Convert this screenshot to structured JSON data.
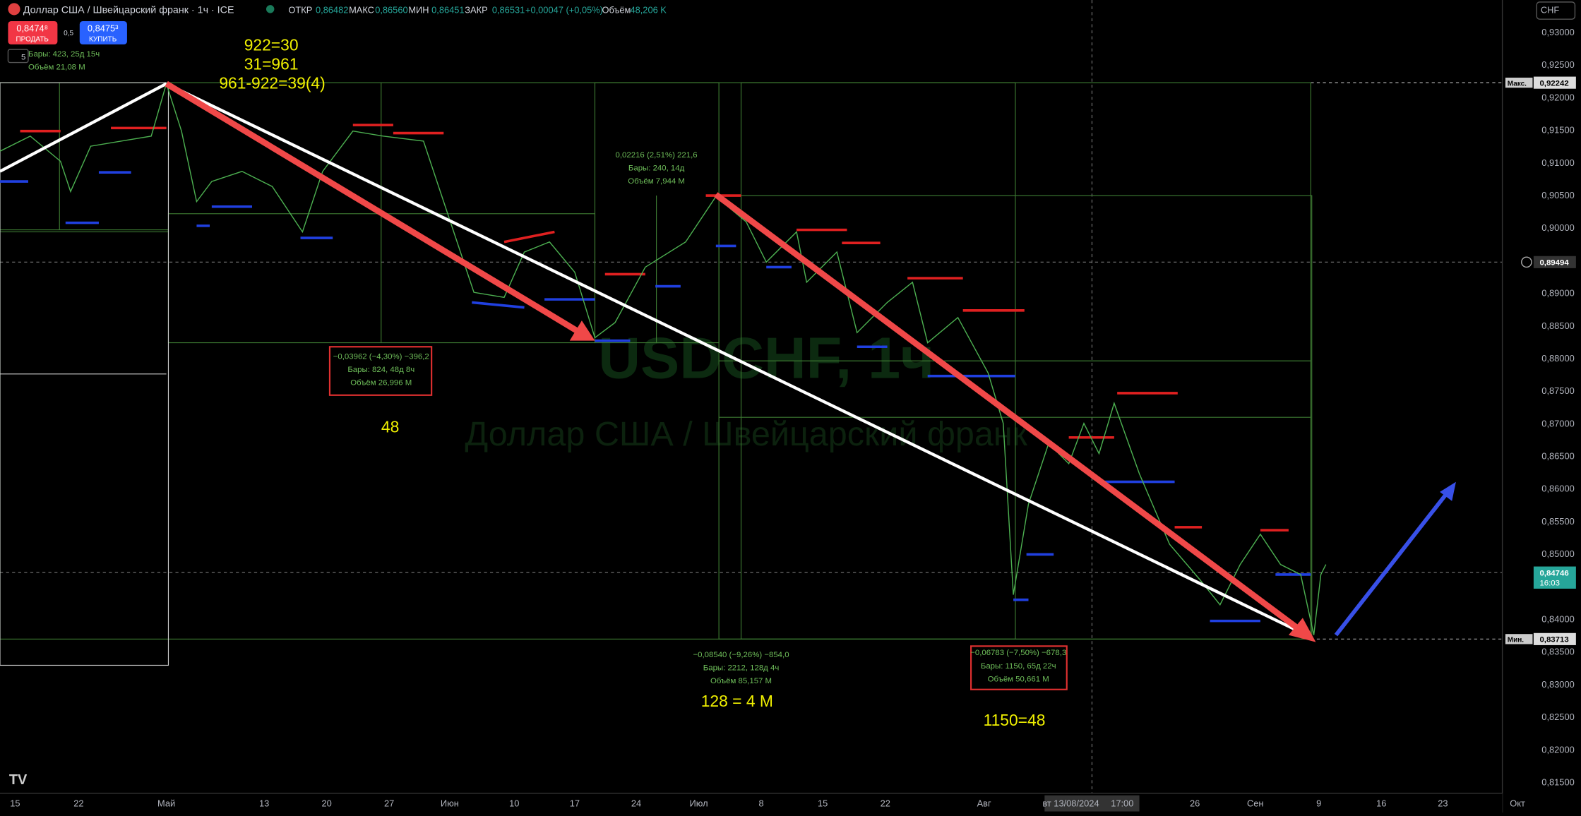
{
  "header": {
    "symbol": "Доллар США / Швейцарский франк · 1ч · ICE",
    "open_label": "ОТКР",
    "open": "0,86482",
    "high_label": "МАКС",
    "high": "0,86560",
    "low_label": "МИН",
    "low": "0,86451",
    "close_label": "ЗАКР",
    "close": "0,86531",
    "change": "+0,00047 (+0,05%)",
    "volume_label": "Объём",
    "volume": "48,206 K"
  },
  "trade": {
    "sell_price": "0,8474⁸",
    "sell": "ПРОДАТЬ",
    "spread": "0,5",
    "buy_price": "0,8475³",
    "buy": "КУПИТЬ",
    "interval": "5"
  },
  "currency": "CHF",
  "watermark": {
    "ticker": "USDCHF, 1ч",
    "name": "Доллар США / Швейцарский франк"
  },
  "y_axis": [
    "0,93000",
    "0,92500",
    "0,92000",
    "0,91500",
    "0,91000",
    "0,90500",
    "0,90000",
    "0,89000",
    "0,88500",
    "0,88000",
    "0,87500",
    "0,87000",
    "0,86500",
    "0,86000",
    "0,85500",
    "0,85000",
    "0,84000",
    "0,83500",
    "0,83000",
    "0,82500",
    "0,82000",
    "0,81500"
  ],
  "price_labels": {
    "max_label": "Макс.",
    "max": "0,92242",
    "cross": "0,89494",
    "last": "0,84746",
    "countdown": "16:03",
    "min_label": "Мин.",
    "min": "0,83713"
  },
  "x_axis": [
    "15",
    "22",
    "Май",
    "13",
    "20",
    "27",
    "Июн",
    "10",
    "17",
    "24",
    "Июл",
    "8",
    "15",
    "22",
    "Авг",
    "вт 13/08/2024",
    "17:00",
    "26",
    "Сен",
    "9",
    "16",
    "23",
    "Окт"
  ],
  "measures": [
    {
      "lines": [
        "Бары: 423, 25д 15ч",
        "Объём 21,08 M"
      ]
    },
    {
      "lines": [
        "−0,03962 (−4,30%) −396,2",
        "Бары: 824, 48д 8ч",
        "Объём 26,996 M"
      ]
    },
    {
      "lines": [
        "0,02216 (2,51%) 221,6",
        "Бары: 240, 14д",
        "Объём 7,944 M"
      ]
    },
    {
      "lines": [
        "−0,08540 (−9,26%) −854,0",
        "Бары: 2212, 128д 4ч",
        "Объём 85,157 M"
      ]
    },
    {
      "lines": [
        "−0,06783 (−7,50%) −678,3",
        "Бары: 1150, 65д 22ч",
        "Объём 50,661 M"
      ]
    }
  ],
  "annotations": [
    "922=30",
    "31=961",
    "961-922=39(4)",
    "48",
    "128 = 4 M",
    "1150=48"
  ]
}
